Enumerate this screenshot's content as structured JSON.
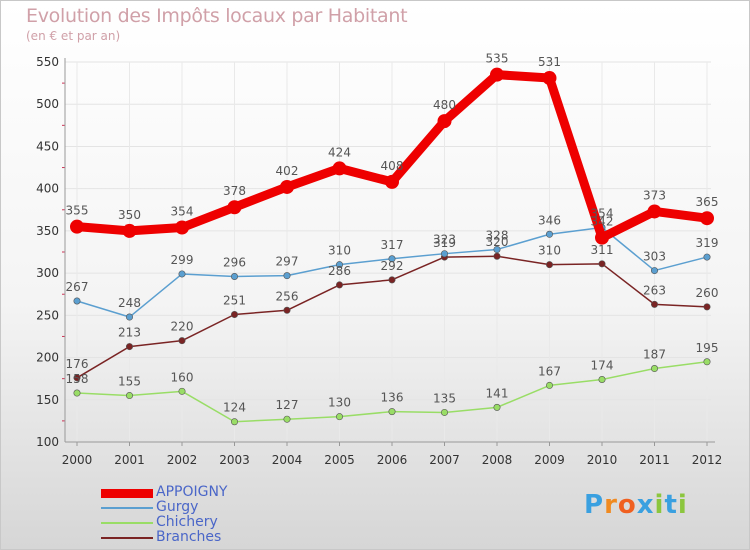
{
  "chart_data": {
    "type": "line",
    "title": "Evolution des Impôts locaux par Habitant",
    "subtitle": "(en € et par an)",
    "x": [
      "2000",
      "2001",
      "2002",
      "2003",
      "2004",
      "2005",
      "2006",
      "2007",
      "2008",
      "2009",
      "2010",
      "2011",
      "2012"
    ],
    "yticks": [
      100,
      150,
      200,
      250,
      300,
      350,
      400,
      450,
      500,
      550
    ],
    "ylim": [
      100,
      550
    ],
    "legend_position": "bottom-left",
    "series": [
      {
        "name": "APPOIGNY",
        "color": "#ee0000",
        "weight": "heavy",
        "values": [
          355,
          350,
          354,
          378,
          402,
          424,
          408,
          480,
          535,
          531,
          342,
          373,
          365
        ]
      },
      {
        "name": "Gurgy",
        "color": "#5b9fd0",
        "weight": "light",
        "values": [
          267,
          248,
          299,
          296,
          297,
          310,
          317,
          323,
          328,
          346,
          354,
          303,
          319
        ]
      },
      {
        "name": "Chichery",
        "color": "#99dd66",
        "weight": "light",
        "values": [
          158,
          155,
          160,
          124,
          127,
          130,
          136,
          135,
          141,
          167,
          174,
          187,
          195
        ]
      },
      {
        "name": "Branches",
        "color": "#7a2424",
        "weight": "light",
        "values": [
          176,
          213,
          220,
          251,
          256,
          286,
          292,
          319,
          320,
          310,
          311,
          263,
          260
        ]
      }
    ]
  },
  "logo": {
    "text": "Proxiti",
    "letters": [
      "P",
      "r",
      "o",
      "x",
      "i",
      "t",
      "i"
    ],
    "colors": [
      "#3aa0e0",
      "#f08a20",
      "#f06020",
      "#3aa0e0",
      "#8cc63e",
      "#3aa0e0",
      "#8cc63e"
    ]
  }
}
